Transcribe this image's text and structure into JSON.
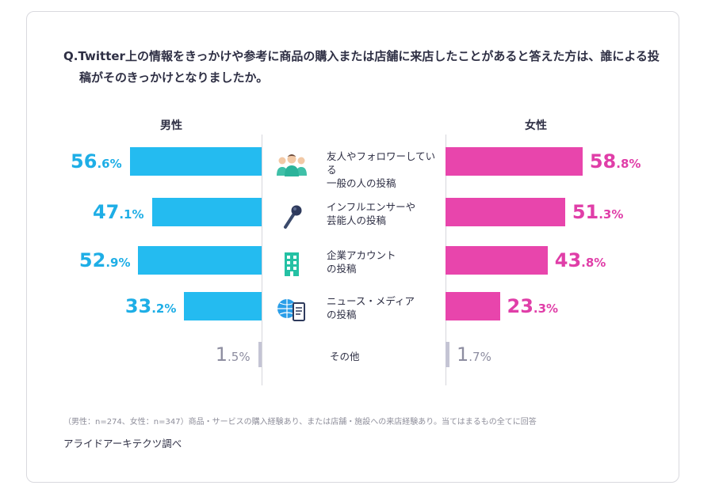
{
  "title": "Q.Twitter上の情報をきっかけや参考に商品の購入または店舗に来店したことがあると答えた方は、誰による投稿がそのきっかけとなりましたか。",
  "male_label": "男性",
  "female_label": "女性",
  "categories": [
    {
      "label": "友人やフォロワーしている\n一般の人の投稿",
      "icon": "people-group-icon"
    },
    {
      "label": "インフルエンサーや\n芸能人の投稿",
      "icon": "microphone-icon"
    },
    {
      "label": "企業アカウント\nの投稿",
      "icon": "building-icon"
    },
    {
      "label": "ニュース・メディア\nの投稿",
      "icon": "globe-document-icon"
    },
    {
      "label": "その他",
      "icon": ""
    }
  ],
  "values_display": {
    "male": [
      [
        "56",
        ".6%"
      ],
      [
        "47",
        ".1%"
      ],
      [
        "52",
        ".9%"
      ],
      [
        "33",
        ".2%"
      ],
      [
        "1",
        ".5%"
      ]
    ],
    "female": [
      [
        "58",
        ".8%"
      ],
      [
        "51",
        ".3%"
      ],
      [
        "43",
        ".8%"
      ],
      [
        "23",
        ".3%"
      ],
      [
        "1",
        ".7%"
      ]
    ]
  },
  "note": "（男性：n=274、女性：n=347）商品・サービスの購入経験あり、または店舗・施設への来店経験あり。当てはまるもの全てに回答",
  "source": "アライドアーキテクツ調べ",
  "colors": {
    "male": "#24bbf0",
    "female": "#e845ac",
    "other": "#c4c4d4"
  },
  "chart_data": {
    "type": "bar",
    "orientation": "horizontal-butterfly",
    "categories": [
      "友人やフォロワーしている一般の人の投稿",
      "インフルエンサーや芸能人の投稿",
      "企業アカウントの投稿",
      "ニュース・メディアの投稿",
      "その他"
    ],
    "series": [
      {
        "name": "男性",
        "values": [
          56.6,
          47.1,
          52.9,
          33.2,
          1.5
        ]
      },
      {
        "name": "女性",
        "values": [
          58.8,
          51.3,
          43.8,
          23.3,
          1.7
        ]
      }
    ],
    "unit": "%",
    "grid": false,
    "legend": "none"
  }
}
